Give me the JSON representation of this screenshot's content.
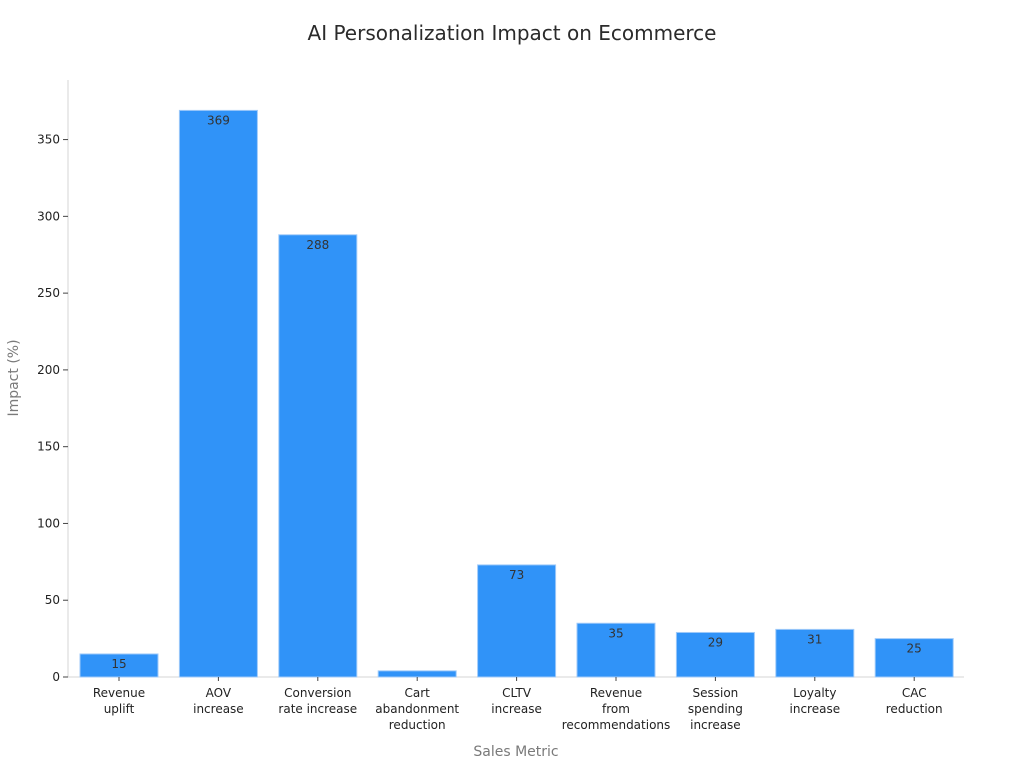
{
  "chart_data": {
    "type": "bar",
    "title": "AI Personalization Impact on Ecommerce",
    "xlabel": "Sales Metric",
    "ylabel": "Impact (%)",
    "ylim": [
      0,
      380
    ],
    "yticks": [
      0,
      50,
      100,
      150,
      200,
      250,
      300,
      350
    ],
    "grid": false,
    "bar_color": "#3093f8",
    "categories": [
      [
        "Revenue",
        "uplift"
      ],
      [
        "AOV",
        "increase"
      ],
      [
        "Conversion",
        "rate increase"
      ],
      [
        "Cart",
        "abandonment",
        "reduction"
      ],
      [
        "CLTV",
        "increase"
      ],
      [
        "Revenue",
        "from",
        "recommendations"
      ],
      [
        "Session",
        "spending",
        "increase"
      ],
      [
        "Loyalty",
        "increase"
      ],
      [
        "CAC",
        "reduction"
      ]
    ],
    "values": [
      15,
      369,
      288,
      4,
      73,
      35,
      29,
      31,
      25
    ],
    "data_labels": [
      "15",
      "369",
      "288",
      "",
      "73",
      "35",
      "29",
      "31",
      "25"
    ]
  }
}
